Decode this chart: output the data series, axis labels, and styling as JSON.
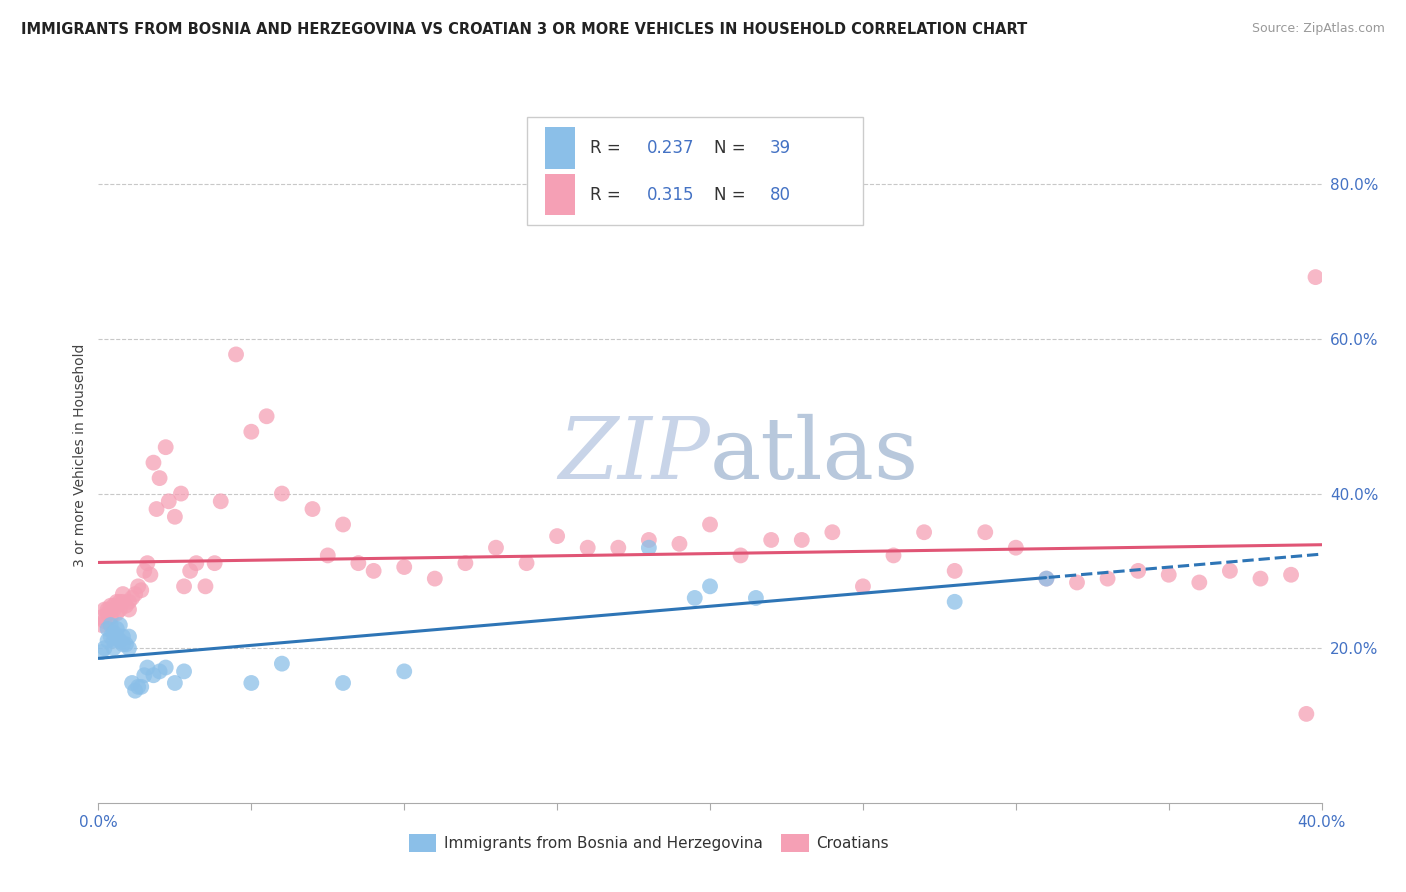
{
  "title": "IMMIGRANTS FROM BOSNIA AND HERZEGOVINA VS CROATIAN 3 OR MORE VEHICLES IN HOUSEHOLD CORRELATION CHART",
  "source_text": "Source: ZipAtlas.com",
  "ylabel": "3 or more Vehicles in Household",
  "legend_label_1": "Immigrants from Bosnia and Herzegovina",
  "legend_label_2": "Croatians",
  "R1": "0.237",
  "N1": "39",
  "R2": "0.315",
  "N2": "80",
  "xlim": [
    0.0,
    0.4
  ],
  "ylim": [
    0.0,
    0.9
  ],
  "x_ticks": [
    0.0,
    0.05,
    0.1,
    0.15,
    0.2,
    0.25,
    0.3,
    0.35,
    0.4
  ],
  "y_ticks_right": [
    0.2,
    0.4,
    0.6,
    0.8
  ],
  "y_tick_labels_right": [
    "20.0%",
    "40.0%",
    "60.0%",
    "80.0%"
  ],
  "color_blue": "#8bbfe8",
  "color_pink": "#f5a0b5",
  "color_line_blue": "#2e75b6",
  "color_line_pink": "#e05575",
  "watermark_color": "#d0d8e8",
  "background_color": "#ffffff",
  "grid_color": "#c8c8c8",
  "blue_x": [
    0.001,
    0.002,
    0.003,
    0.003,
    0.004,
    0.004,
    0.005,
    0.005,
    0.005,
    0.006,
    0.006,
    0.007,
    0.007,
    0.008,
    0.008,
    0.009,
    0.01,
    0.01,
    0.011,
    0.012,
    0.013,
    0.014,
    0.015,
    0.016,
    0.018,
    0.02,
    0.022,
    0.025,
    0.028,
    0.05,
    0.06,
    0.08,
    0.1,
    0.18,
    0.195,
    0.2,
    0.215,
    0.28,
    0.31
  ],
  "blue_y": [
    0.195,
    0.2,
    0.21,
    0.225,
    0.215,
    0.23,
    0.2,
    0.21,
    0.22,
    0.215,
    0.225,
    0.21,
    0.23,
    0.205,
    0.215,
    0.205,
    0.2,
    0.215,
    0.155,
    0.145,
    0.15,
    0.15,
    0.165,
    0.175,
    0.165,
    0.17,
    0.175,
    0.155,
    0.17,
    0.155,
    0.18,
    0.155,
    0.17,
    0.33,
    0.265,
    0.28,
    0.265,
    0.26,
    0.29
  ],
  "pink_x": [
    0.001,
    0.001,
    0.002,
    0.002,
    0.003,
    0.003,
    0.004,
    0.004,
    0.005,
    0.005,
    0.006,
    0.006,
    0.007,
    0.007,
    0.008,
    0.008,
    0.009,
    0.01,
    0.01,
    0.011,
    0.012,
    0.013,
    0.014,
    0.015,
    0.016,
    0.017,
    0.018,
    0.019,
    0.02,
    0.022,
    0.023,
    0.025,
    0.027,
    0.028,
    0.03,
    0.032,
    0.035,
    0.038,
    0.04,
    0.045,
    0.05,
    0.055,
    0.06,
    0.07,
    0.075,
    0.08,
    0.085,
    0.09,
    0.1,
    0.11,
    0.12,
    0.13,
    0.14,
    0.15,
    0.16,
    0.17,
    0.18,
    0.19,
    0.2,
    0.21,
    0.22,
    0.23,
    0.24,
    0.25,
    0.26,
    0.27,
    0.28,
    0.29,
    0.3,
    0.31,
    0.32,
    0.33,
    0.34,
    0.35,
    0.36,
    0.37,
    0.38,
    0.39,
    0.395,
    0.398
  ],
  "pink_y": [
    0.23,
    0.24,
    0.235,
    0.25,
    0.245,
    0.25,
    0.24,
    0.255,
    0.25,
    0.255,
    0.245,
    0.26,
    0.25,
    0.26,
    0.26,
    0.27,
    0.255,
    0.25,
    0.26,
    0.265,
    0.27,
    0.28,
    0.275,
    0.3,
    0.31,
    0.295,
    0.44,
    0.38,
    0.42,
    0.46,
    0.39,
    0.37,
    0.4,
    0.28,
    0.3,
    0.31,
    0.28,
    0.31,
    0.39,
    0.58,
    0.48,
    0.5,
    0.4,
    0.38,
    0.32,
    0.36,
    0.31,
    0.3,
    0.305,
    0.29,
    0.31,
    0.33,
    0.31,
    0.345,
    0.33,
    0.33,
    0.34,
    0.335,
    0.36,
    0.32,
    0.34,
    0.34,
    0.35,
    0.28,
    0.32,
    0.35,
    0.3,
    0.35,
    0.33,
    0.29,
    0.285,
    0.29,
    0.3,
    0.295,
    0.285,
    0.3,
    0.29,
    0.295,
    0.115,
    0.68
  ]
}
